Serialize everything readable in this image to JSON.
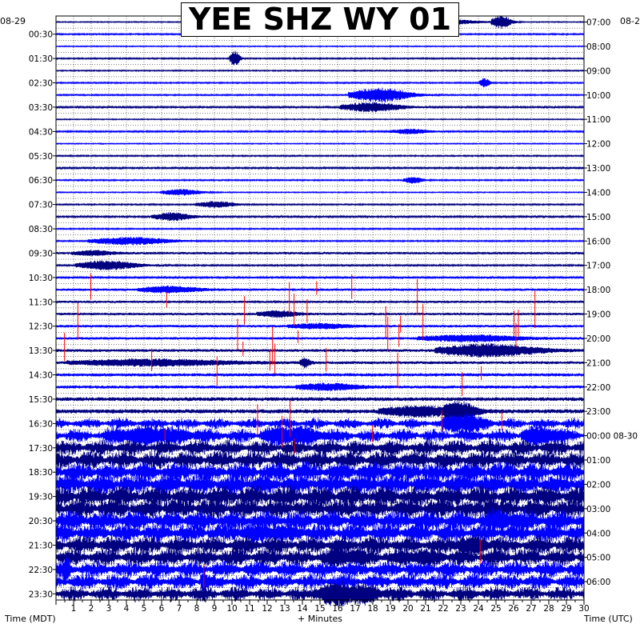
{
  "header": {
    "title": "YEE SHZ WY 01",
    "date_left": "08-29",
    "date_right": "08-2"
  },
  "labels": {
    "left_axis": "Time (MDT)",
    "bottom_axis": "+ Minutes",
    "right_axis": "Time (UTC)"
  },
  "colors": {
    "trace_cycle": [
      "#000080",
      "#0000ff",
      "#0000ff",
      "#000080"
    ],
    "trace_dark": "#000080",
    "trace_blue": "#0000ff",
    "clip": "#ff0000",
    "grid": "#000000",
    "background": "#ffffff"
  },
  "chart_data": {
    "type": "line",
    "title": "YEE SHZ WY 01",
    "xlabel": "+ Minutes",
    "ylabel_left": "Time (MDT)",
    "ylabel_right": "Time (UTC)",
    "xlim": [
      0,
      30
    ],
    "x_ticks": [
      "1",
      "2",
      "3",
      "4",
      "5",
      "6",
      "7",
      "8",
      "9",
      "10",
      "11",
      "12",
      "13",
      "14",
      "15",
      "16",
      "17",
      "18",
      "19",
      "20",
      "21",
      "22",
      "23",
      "24",
      "25",
      "26",
      "27",
      "28",
      "29",
      "30"
    ],
    "y_ticks_left": [
      "00:30",
      "01:30",
      "02:30",
      "03:30",
      "04:30",
      "05:30",
      "06:30",
      "07:30",
      "08:30",
      "09:30",
      "10:30",
      "11:30",
      "12:30",
      "13:30",
      "14:30",
      "15:30",
      "16:30",
      "17:30",
      "18:30",
      "19:30",
      "20:30",
      "21:30",
      "22:30",
      "23:30"
    ],
    "y_ticks_right": [
      "07:00",
      "08:00",
      "09:00",
      "10:00",
      "11:00",
      "12:00",
      "13:00",
      "14:00",
      "15:00",
      "16:00",
      "17:00",
      "18:00",
      "19:00",
      "20:00",
      "21:00",
      "22:00",
      "23:00",
      "00:00 08-30",
      "01:00",
      "02:00",
      "03:00",
      "04:00",
      "05:00",
      "06:00"
    ],
    "traces": 48,
    "minutes_per_trace": 30,
    "amplitude_by_row": [
      0.6,
      0.8,
      0.6,
      0.8,
      0.7,
      0.8,
      0.8,
      1.0,
      0.6,
      0.9,
      0.6,
      0.8,
      1.0,
      0.8,
      0.6,
      0.8,
      1.0,
      0.8,
      0.8,
      1.5,
      0.9,
      1.1,
      1.4,
      1.4,
      1.5,
      1.6,
      1.6,
      1.8,
      1.8,
      2.0,
      2.0,
      2.4,
      2.6,
      4.0,
      5.0,
      6.0,
      7.0,
      8.0,
      8.5,
      8.5,
      8.0,
      8.0,
      7.5,
      7.0,
      7.0,
      6.5,
      6.0,
      5.5
    ],
    "events": [
      {
        "row": 0,
        "minute": 19.0,
        "amp": 6,
        "dur": 5
      },
      {
        "row": 0,
        "minute": 25.0,
        "amp": 8,
        "dur": 1
      },
      {
        "row": 3,
        "minute": 10.0,
        "amp": 10,
        "dur": 0.5
      },
      {
        "row": 5,
        "minute": 24.2,
        "amp": 6,
        "dur": 0.5
      },
      {
        "row": 6,
        "minute": 17.5,
        "amp": 9,
        "dur": 3
      },
      {
        "row": 7,
        "minute": 17.0,
        "amp": 6,
        "dur": 3
      },
      {
        "row": 9,
        "minute": 19.5,
        "amp": 3,
        "dur": 2
      },
      {
        "row": 13,
        "minute": 20.0,
        "amp": 4,
        "dur": 1
      },
      {
        "row": 14,
        "minute": 6.5,
        "amp": 4,
        "dur": 2
      },
      {
        "row": 15,
        "minute": 8.5,
        "amp": 4,
        "dur": 2
      },
      {
        "row": 16,
        "minute": 6.0,
        "amp": 5,
        "dur": 2
      },
      {
        "row": 18,
        "minute": 3.0,
        "amp": 5,
        "dur": 4
      },
      {
        "row": 19,
        "minute": 1.5,
        "amp": 3,
        "dur": 2
      },
      {
        "row": 20,
        "minute": 2.0,
        "amp": 6,
        "dur": 3
      },
      {
        "row": 22,
        "minute": 5.5,
        "amp": 4,
        "dur": 3
      },
      {
        "row": 24,
        "minute": 12.0,
        "amp": 4,
        "dur": 2
      },
      {
        "row": 25,
        "minute": 14.0,
        "amp": 3,
        "dur": 3
      },
      {
        "row": 26,
        "minute": 22.0,
        "amp": 4,
        "dur": 5
      },
      {
        "row": 27,
        "minute": 23.0,
        "amp": 8,
        "dur": 5
      },
      {
        "row": 28,
        "minute": 3.0,
        "amp": 4,
        "dur": 8
      },
      {
        "row": 28,
        "minute": 14.0,
        "amp": 6,
        "dur": 0.5
      },
      {
        "row": 30,
        "minute": 14.5,
        "amp": 4,
        "dur": 3
      },
      {
        "row": 32,
        "minute": 19.5,
        "amp": 6,
        "dur": 4
      },
      {
        "row": 32,
        "minute": 22.5,
        "amp": 10,
        "dur": 1.5
      },
      {
        "row": 33,
        "minute": 22.5,
        "amp": 10,
        "dur": 2
      },
      {
        "row": 34,
        "minute": 4.0,
        "amp": 8,
        "dur": 4
      },
      {
        "row": 34,
        "minute": 12.5,
        "amp": 8,
        "dur": 3
      },
      {
        "row": 34,
        "minute": 27.0,
        "amp": 8,
        "dur": 2
      },
      {
        "row": 40,
        "minute": 24.5,
        "amp": 12,
        "dur": 0.5
      },
      {
        "row": 41,
        "minute": 25.0,
        "amp": 5,
        "dur": 2
      },
      {
        "row": 42,
        "minute": 11.0,
        "amp": 4,
        "dur": 3
      },
      {
        "row": 43,
        "minute": 23.0,
        "amp": 5,
        "dur": 2
      },
      {
        "row": 44,
        "minute": 16.0,
        "amp": 5,
        "dur": 2
      },
      {
        "row": 44,
        "minute": 20.0,
        "amp": 4,
        "dur": 2
      },
      {
        "row": 45,
        "minute": 0.5,
        "amp": 10,
        "dur": 0.3
      },
      {
        "row": 46,
        "minute": 8.3,
        "amp": 12,
        "dur": 0.3
      },
      {
        "row": 47,
        "minute": 15.5,
        "amp": 10,
        "dur": 3
      }
    ],
    "clips": [
      {
        "row": 44,
        "minute": 24.1,
        "len": 22
      },
      {
        "row": 46,
        "minute": 8.4,
        "len": 22
      }
    ],
    "grid": true
  }
}
